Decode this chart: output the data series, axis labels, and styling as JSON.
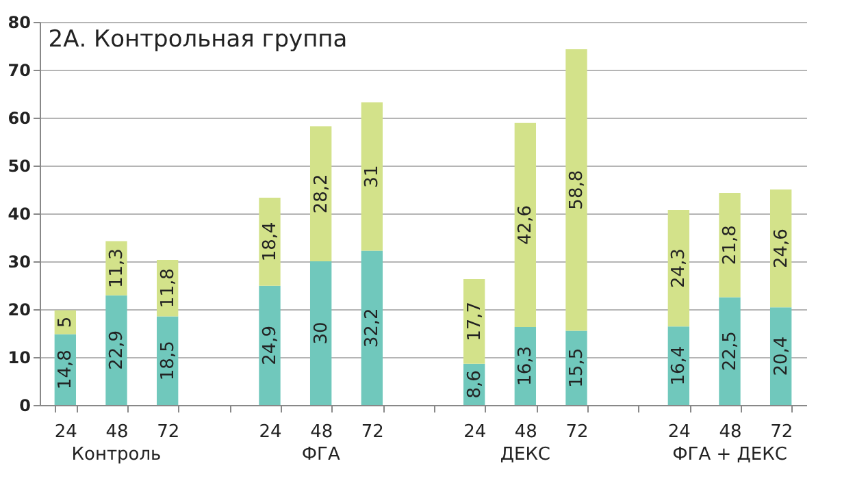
{
  "chart_data": {
    "type": "bar",
    "title": "2А. Контрольная группа",
    "stacked": true,
    "grid": "y",
    "categories": [
      "24",
      "48",
      "72",
      null,
      "24",
      "48",
      "72",
      null,
      "24",
      "48",
      "72",
      null,
      "24",
      "48",
      "72"
    ],
    "annotations": [
      "Контроль",
      "ФГА",
      "ДЕКС",
      "ФГА + ДЕКС"
    ],
    "ylim": [
      0,
      80
    ],
    "yticks": [
      0,
      10,
      20,
      30,
      40,
      50,
      60,
      70,
      80
    ],
    "series": [
      {
        "color": "#70c8bc",
        "values": [
          14.8,
          22.9,
          18.5,
          null,
          24.9,
          30,
          32.2,
          null,
          8.6,
          16.3,
          15.5,
          null,
          16.4,
          22.5,
          20.4
        ],
        "value_labels": [
          "14,8",
          "22,9",
          "18,5",
          null,
          "24,9",
          "30",
          "32,2",
          null,
          "8,6",
          "16,3",
          "15,5",
          null,
          "16,4",
          "22,5",
          "20,4"
        ]
      },
      {
        "color": "#d3e28a",
        "values": [
          5,
          11.3,
          11.8,
          null,
          18.4,
          28.2,
          31,
          null,
          17.7,
          42.6,
          58.8,
          null,
          24.3,
          21.8,
          24.6
        ],
        "value_labels": [
          "5",
          "11,3",
          "11,8",
          null,
          "18,4",
          "28,2",
          "31",
          null,
          "17,7",
          "42,6",
          "58,8",
          null,
          "24,3",
          "21,8",
          "24,6"
        ]
      }
    ]
  }
}
